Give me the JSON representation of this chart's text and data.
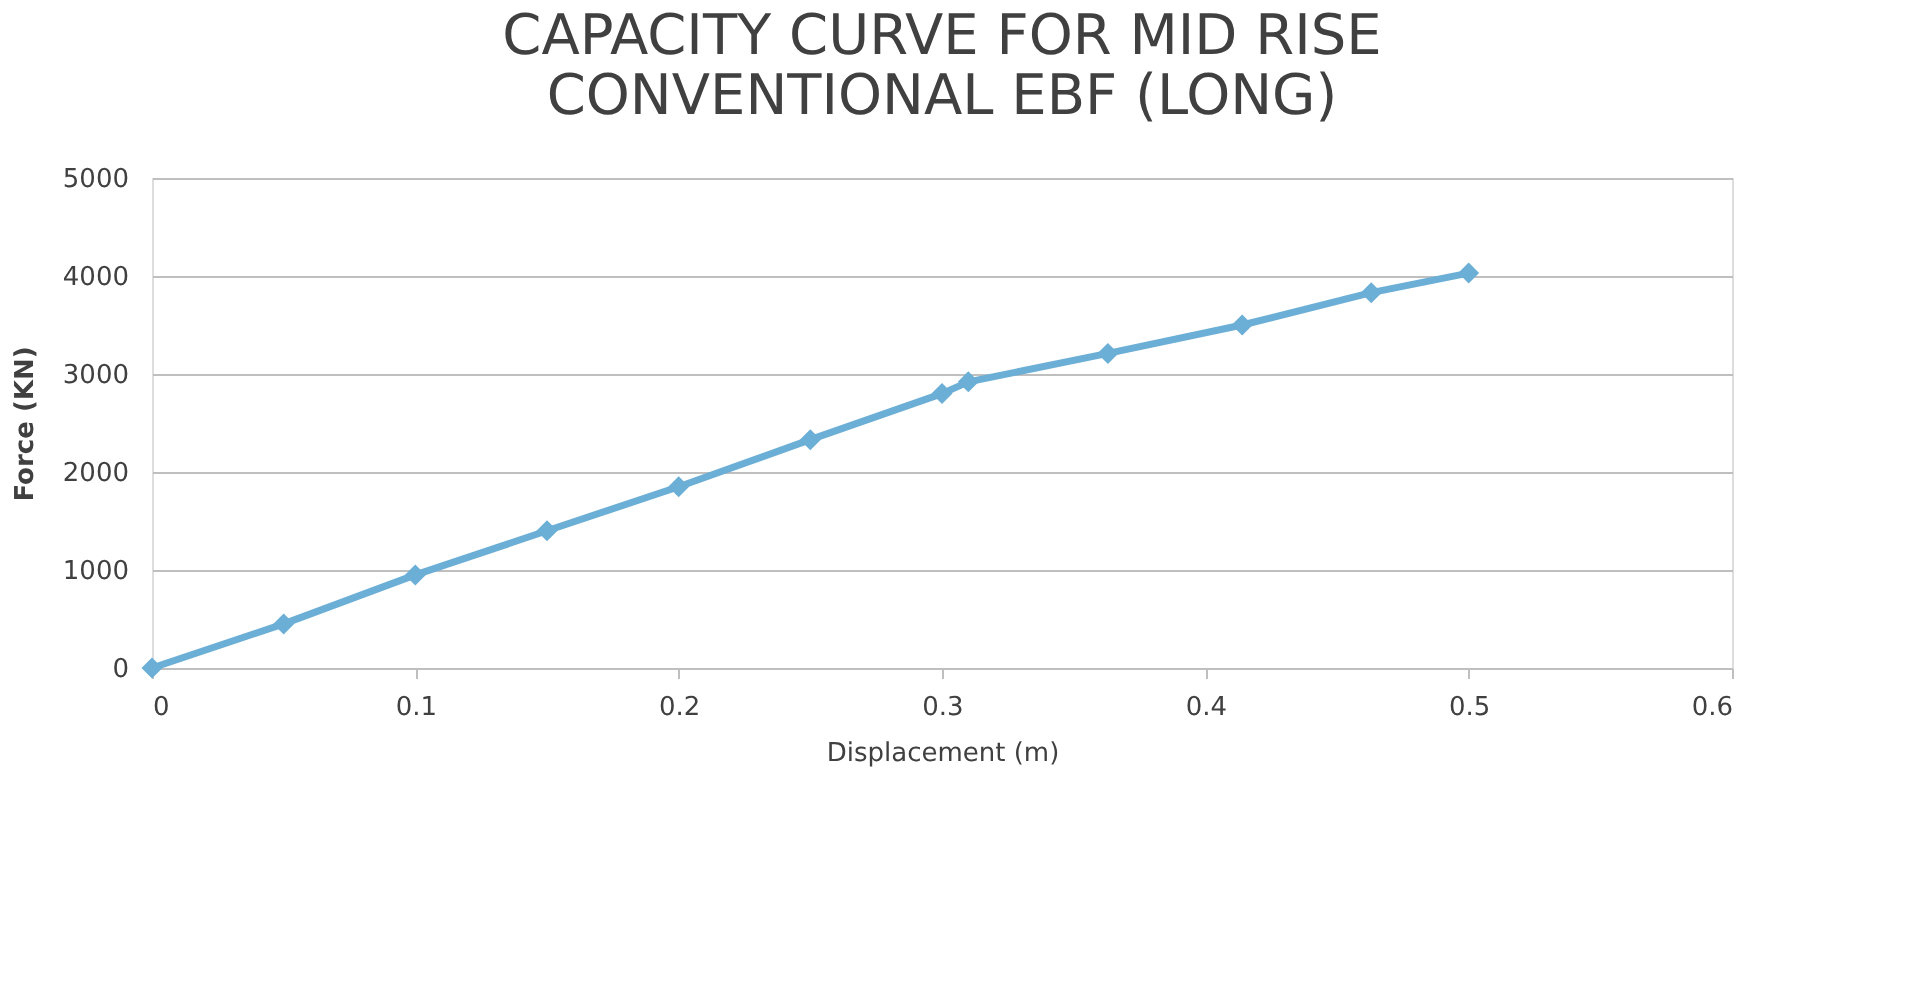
{
  "chart_data": {
    "type": "line",
    "title": [
      "CAPACITY CURVE FOR MID RISE",
      "CONVENTIONAL EBF (LONG)"
    ],
    "xlabel": "Displacement  (m)",
    "ylabel": "Force (KN)",
    "series": [
      {
        "color": "#6baed6",
        "x": [
          0,
          0.05,
          0.1,
          0.15,
          0.2,
          0.25,
          0.3,
          0.31,
          0.363,
          0.414,
          0.463,
          0.5
        ],
        "values": [
          0,
          450,
          950,
          1400,
          1850,
          2330,
          2800,
          2920,
          3210,
          3500,
          3830,
          4030
        ]
      }
    ],
    "xlim": [
      0,
      0.6
    ],
    "xticks": [
      0,
      0.1,
      0.2,
      0.3,
      0.4,
      0.5,
      0.6
    ],
    "ylim": [
      0,
      5000
    ],
    "yticks": [
      0,
      1000,
      2000,
      3000,
      4000,
      5000
    ],
    "grid": "y",
    "marker": "diamond",
    "line_style": "solid"
  }
}
